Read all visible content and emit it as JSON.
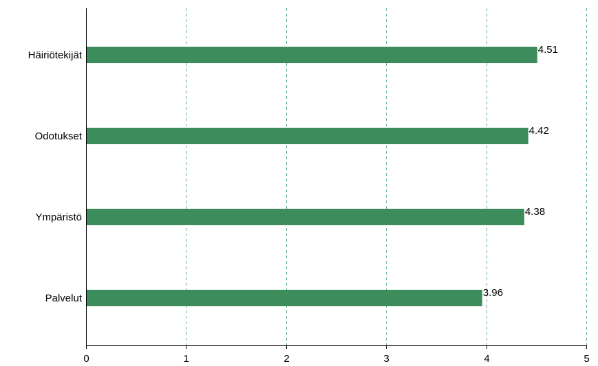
{
  "chart_data": {
    "type": "bar",
    "orientation": "horizontal",
    "categories": [
      "Häiriötekijät",
      "Odotukset",
      "Ympäristö",
      "Palvelut"
    ],
    "values": [
      4.51,
      4.42,
      4.38,
      3.96
    ],
    "value_labels": [
      "4.51",
      "4.42",
      "4.38",
      "3.96"
    ],
    "xlim": [
      0,
      5
    ],
    "xticks": [
      0,
      1,
      2,
      3,
      4,
      5
    ],
    "xtick_labels": [
      "0",
      "1",
      "2",
      "3",
      "4",
      "5"
    ],
    "grid": "vertical dashed",
    "legend": "none",
    "title": "",
    "xlabel": "",
    "ylabel": ""
  },
  "colors": {
    "bar": "#3d8c5c",
    "grid": "#5fae8a",
    "axis": "#000000"
  }
}
